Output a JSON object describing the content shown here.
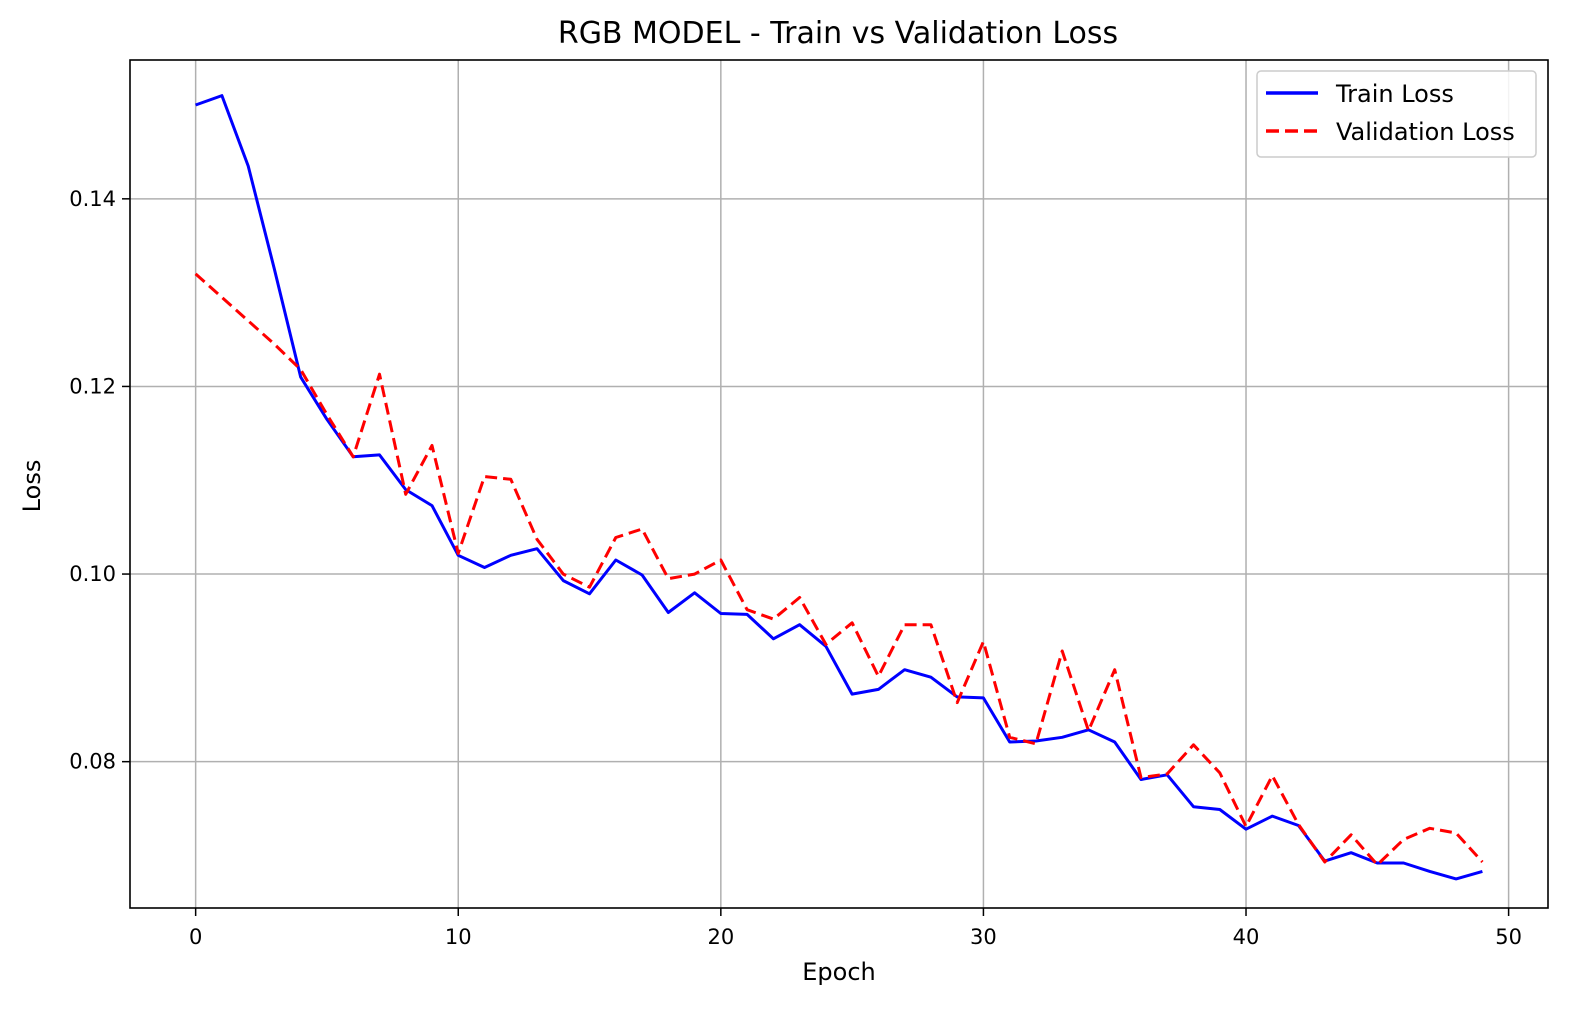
{
  "chart_data": {
    "type": "line",
    "title": "RGB MODEL - Train vs Validation Loss",
    "xlabel": "Epoch",
    "ylabel": "Loss",
    "xlim": [
      -2.5,
      51.5
    ],
    "ylim": [
      0.0644,
      0.1548
    ],
    "xticks": [
      0,
      10,
      20,
      30,
      40,
      50
    ],
    "yticks": [
      0.08,
      0.1,
      0.12,
      0.14
    ],
    "grid": true,
    "legend_position": "top-right",
    "x": [
      0,
      1,
      2,
      3,
      4,
      5,
      6,
      7,
      8,
      9,
      10,
      11,
      12,
      13,
      14,
      15,
      16,
      17,
      18,
      19,
      20,
      21,
      22,
      23,
      24,
      25,
      26,
      27,
      28,
      29,
      30,
      31,
      32,
      33,
      34,
      35,
      36,
      37,
      38,
      39,
      40,
      41,
      42,
      43,
      44,
      45,
      46,
      47,
      48,
      49
    ],
    "series": [
      {
        "name": "Train Loss",
        "color": "#0000ff",
        "style": "solid",
        "values": [
          0.15,
          0.151,
          0.1435,
          0.1325,
          0.121,
          0.1165,
          0.1125,
          0.1127,
          0.109,
          0.1073,
          0.102,
          0.1007,
          0.102,
          0.1027,
          0.0993,
          0.0979,
          0.1015,
          0.0999,
          0.0959,
          0.098,
          0.0958,
          0.0957,
          0.0931,
          0.0946,
          0.0923,
          0.0872,
          0.0877,
          0.0898,
          0.089,
          0.0869,
          0.0868,
          0.0821,
          0.0822,
          0.0826,
          0.0834,
          0.0821,
          0.0781,
          0.0786,
          0.0752,
          0.0749,
          0.0728,
          0.0742,
          0.0732,
          0.0694,
          0.0703,
          0.0692,
          0.0692,
          0.0683,
          0.0675,
          0.0683
        ]
      },
      {
        "name": "Validation Loss",
        "color": "#ff0000",
        "style": "dashed",
        "values": [
          0.132,
          0.1295,
          0.127,
          0.1245,
          0.1218,
          0.117,
          0.1125,
          0.1213,
          0.1085,
          0.1137,
          0.1022,
          0.1104,
          0.1101,
          0.1037,
          0.1,
          0.0986,
          0.1039,
          0.1048,
          0.0995,
          0.1,
          0.1015,
          0.0962,
          0.0952,
          0.0975,
          0.0925,
          0.0948,
          0.0891,
          0.0946,
          0.0946,
          0.0863,
          0.0928,
          0.0826,
          0.0819,
          0.0918,
          0.0833,
          0.0898,
          0.0783,
          0.0787,
          0.0818,
          0.0788,
          0.0731,
          0.0785,
          0.0733,
          0.0693,
          0.0722,
          0.069,
          0.0717,
          0.0729,
          0.0724,
          0.0693
        ]
      }
    ]
  }
}
